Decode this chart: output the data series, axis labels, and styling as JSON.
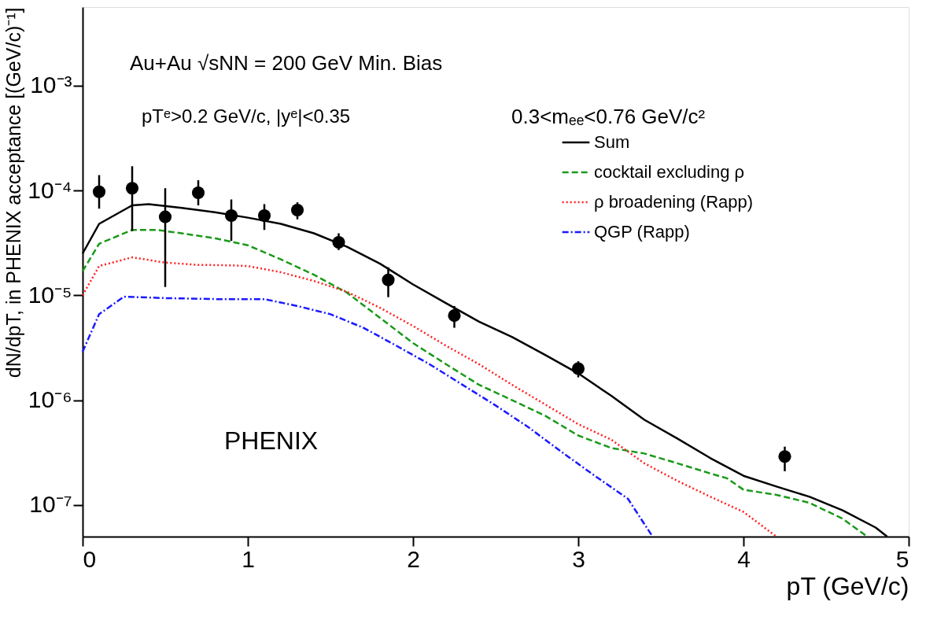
{
  "chart_data": {
    "type": "line",
    "xlabel": "pT (GeV/c)",
    "ylabel": "dN/dpT, in PHENIX acceptance [(GeV/c)⁻¹]",
    "annotations": [
      "Au+Au √sNN = 200 GeV Min. Bias",
      "pTᵉ>0.2 GeV/c, |yᵉ|<0.35",
      "0.3<mₑₑ<0.76 GeV/c²",
      "PHENIX"
    ],
    "log": "y",
    "grid": false,
    "legend": "top right",
    "xlim": [
      0,
      5
    ],
    "xticks": [
      0,
      1,
      2,
      3,
      4,
      5
    ],
    "ylim": [
      5e-08,
      0.0056
    ],
    "yticks": [
      {
        "value": 1e-07,
        "label": "10⁻⁷"
      },
      {
        "value": 1e-06,
        "label": "10⁻⁶"
      },
      {
        "value": 1e-05,
        "label": "10⁻⁵"
      },
      {
        "value": 0.0001,
        "label": "10⁻⁴"
      },
      {
        "value": 0.001,
        "label": "10⁻³"
      }
    ],
    "series": [
      {
        "name": "Sum",
        "color": "#000000",
        "line_style": "solid",
        "x": [
          0.0,
          0.1,
          0.3,
          0.4,
          0.6,
          0.8,
          1.0,
          1.2,
          1.4,
          1.6,
          1.8,
          2.0,
          2.2,
          2.4,
          2.6,
          2.8,
          3.0,
          3.2,
          3.4,
          3.6,
          3.8,
          4.0,
          4.2,
          4.4,
          4.6,
          4.8,
          4.87
        ],
        "values": [
          2.5e-05,
          4.8e-05,
          7.2e-05,
          7.4e-05,
          6.8e-05,
          6.2e-05,
          5.5e-05,
          4.8e-05,
          3.9e-05,
          2.9e-05,
          2e-05,
          1.27e-05,
          8.4e-06,
          5.6e-06,
          4e-06,
          2.7e-06,
          1.8e-06,
          1.1e-06,
          6.5e-07,
          4.3e-07,
          2.8e-07,
          1.9e-07,
          1.5e-07,
          1.2e-07,
          8.9e-08,
          6.1e-08,
          5e-08
        ]
      },
      {
        "name": "cocktail excluding ρ",
        "color": "#1a9a1a",
        "line_style": "dashed",
        "x": [
          0.0,
          0.1,
          0.3,
          0.45,
          0.6,
          0.8,
          1.0,
          1.2,
          1.4,
          1.6,
          1.8,
          2.0,
          2.2,
          2.4,
          2.6,
          2.8,
          3.0,
          3.2,
          3.4,
          3.6,
          3.8,
          3.9,
          4.0,
          4.2,
          4.4,
          4.6,
          4.75
        ],
        "values": [
          1.7e-05,
          3.1e-05,
          4.2e-05,
          4.2e-05,
          3.9e-05,
          3.5e-05,
          3e-05,
          2.2e-05,
          1.57e-05,
          1.06e-05,
          6.1e-06,
          3.5e-06,
          2.2e-06,
          1.4e-06,
          1e-06,
          7.1e-07,
          4.6e-07,
          3.5e-07,
          3.1e-07,
          2.5e-07,
          2e-07,
          1.8e-07,
          1.4e-07,
          1.25e-07,
          1.05e-07,
          7.4e-08,
          5e-08
        ]
      },
      {
        "name": "ρ broadening (Rapp)",
        "color": "#ff2020",
        "line_style": "dotted",
        "x": [
          0.0,
          0.1,
          0.3,
          0.5,
          0.7,
          0.9,
          1.0,
          1.2,
          1.4,
          1.6,
          1.8,
          2.0,
          2.2,
          2.4,
          2.6,
          2.8,
          3.0,
          3.2,
          3.4,
          3.6,
          3.8,
          4.0,
          4.2
        ],
        "values": [
          1e-05,
          1.9e-05,
          2.3e-05,
          2.05e-05,
          1.95e-05,
          1.93e-05,
          1.9e-05,
          1.66e-05,
          1.37e-05,
          1.08e-05,
          7.6e-06,
          5.1e-06,
          3.3e-06,
          2.2e-06,
          1.4e-06,
          9.1e-07,
          5.9e-07,
          4.2e-07,
          2.5e-07,
          1.7e-07,
          1.2e-07,
          8.6e-08,
          5e-08
        ]
      },
      {
        "name": "QGP (Rapp)",
        "color": "#1a1aff",
        "line_style": "dashdot",
        "x": [
          0.0,
          0.1,
          0.25,
          0.5,
          0.8,
          1.1,
          1.3,
          1.5,
          1.7,
          1.9,
          2.1,
          2.3,
          2.5,
          2.7,
          2.9,
          3.1,
          3.3,
          3.45
        ],
        "values": [
          2.9e-06,
          6.6e-06,
          9.7e-06,
          9.4e-06,
          9.2e-06,
          9.2e-06,
          7.9e-06,
          6.6e-06,
          4.9e-06,
          3.3e-06,
          2.2e-06,
          1.4e-06,
          8.9e-07,
          5.5e-07,
          3.2e-07,
          1.9e-07,
          1.15e-07,
          5e-08
        ]
      },
      {
        "type": "scatter",
        "color": "#000000",
        "marker": "circle",
        "x": [
          0.1,
          0.3,
          0.5,
          0.7,
          0.9,
          1.1,
          1.3,
          1.55,
          1.85,
          2.25,
          3.0,
          4.25
        ],
        "values": [
          9.7e-05,
          0.000105,
          5.6e-05,
          9.5e-05,
          5.75e-05,
          5.75e-05,
          6.5e-05,
          3.2e-05,
          1.4e-05,
          6.4e-06,
          2e-06,
          2.9e-07
        ],
        "errors": [
          [
            6.7e-05,
            0.00014
          ],
          [
            4.1e-05,
            0.00017
          ],
          [
            1.2e-05,
            0.000105
          ],
          [
            7.2e-05,
            0.000125
          ],
          [
            3.3e-05,
            8.2e-05
          ],
          [
            4.2e-05,
            7.4e-05
          ],
          [
            5.3e-05,
            7.7e-05
          ],
          [
            2.7e-05,
            3.9e-05
          ],
          [
            9.6e-06,
            1.85e-05
          ],
          [
            4.9e-06,
            7.9e-06
          ],
          [
            1.65e-06,
            2.35e-06
          ],
          [
            2.1e-07,
            3.6e-07
          ]
        ]
      }
    ]
  }
}
